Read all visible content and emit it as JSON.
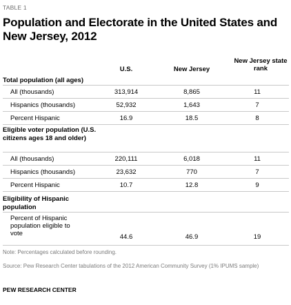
{
  "eyebrow": "TABLE 1",
  "title": "Population and Electorate in the United States and New Jersey, 2012",
  "columns": [
    "U.S.",
    "New Jersey",
    "New Jersey state rank"
  ],
  "sections": [
    {
      "heading": "Total population (all ages)",
      "rows": [
        {
          "label": "All (thousands)",
          "us": "313,914",
          "nj": "8,865",
          "rank": "11"
        },
        {
          "label": "Hispanics (thousands)",
          "us": "52,932",
          "nj": "1,643",
          "rank": "7"
        },
        {
          "label": "Percent Hispanic",
          "us": "16.9",
          "nj": "18.5",
          "rank": "8"
        }
      ]
    },
    {
      "heading": "Eligible voter population (U.S. citizens ages 18 and older)",
      "rows": [
        {
          "label": "All (thousands)",
          "us": "220,111",
          "nj": "6,018",
          "rank": "11"
        },
        {
          "label": "Hispanics (thousands)",
          "us": "23,632",
          "nj": "770",
          "rank": "7"
        },
        {
          "label": "Percent Hispanic",
          "us": "10.7",
          "nj": "12.8",
          "rank": "9"
        }
      ]
    },
    {
      "heading": "Eligibility of Hispanic population",
      "rows": [
        {
          "label": "Percent of Hispanic population eligible to vote",
          "us": "44.6",
          "nj": "46.9",
          "rank": "19"
        }
      ]
    }
  ],
  "note": "Note: Percentages calculated before rounding.",
  "source": "Source: Pew Research Center tabulations of the 2012 American Community Survey (1% IPUMS sample)",
  "credit": "PEW RESEARCH CENTER"
}
